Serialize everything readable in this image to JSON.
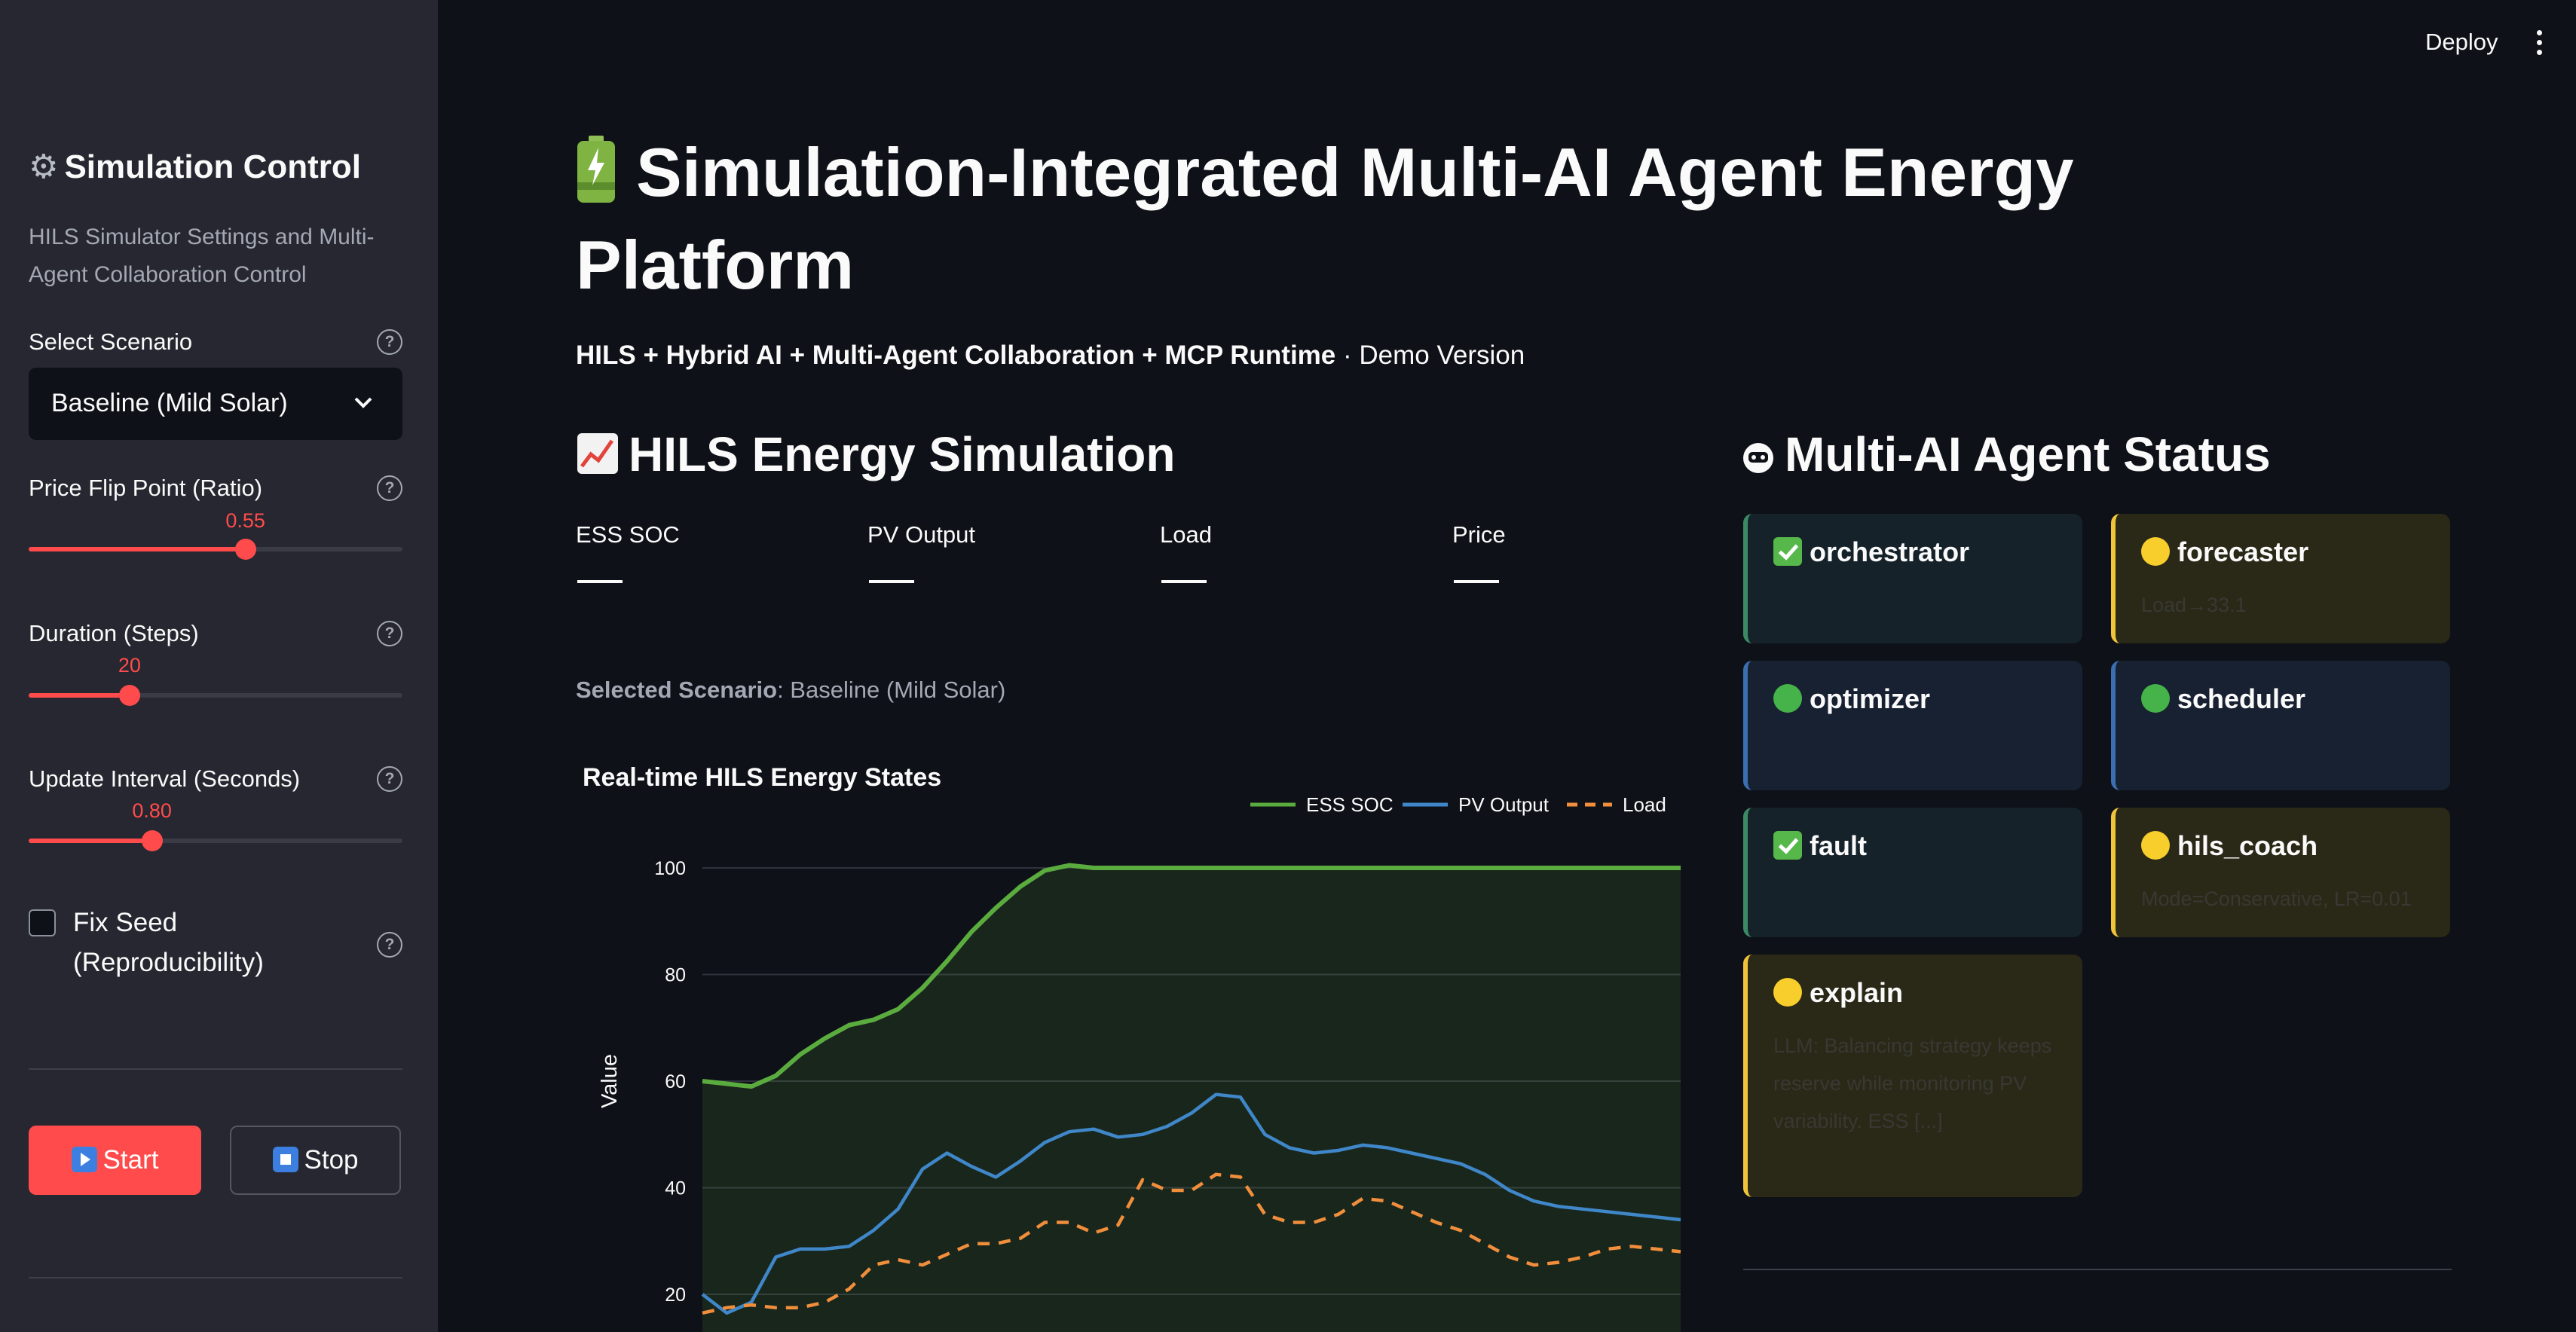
{
  "header": {
    "deploy_label": "Deploy"
  },
  "sidebar": {
    "title": "Simulation Control",
    "subtitle": "HILS Simulator Settings and Multi-Agent Collaboration Control",
    "scenario": {
      "label": "Select Scenario",
      "value": "Baseline (Mild Solar)"
    },
    "price_flip": {
      "label": "Price Flip Point (Ratio)",
      "value": "0.55",
      "fraction": 0.58
    },
    "duration": {
      "label": "Duration (Steps)",
      "value": "20",
      "fraction": 0.27
    },
    "interval": {
      "label": "Update Interval (Seconds)",
      "value": "0.80",
      "fraction": 0.33
    },
    "fix_seed": {
      "label": "Fix Seed (Reproducibility)",
      "checked": false
    },
    "start_label": "Start",
    "stop_label": "Stop"
  },
  "main": {
    "title": "Simulation-Integrated Multi-AI Agent Energy Platform",
    "subline_bold": "HILS + Hybrid AI + Multi-Agent Collaboration + MCP Runtime",
    "subline_rest": " · Demo Version",
    "sim_heading": "HILS Energy Simulation",
    "metrics": [
      {
        "label": "ESS SOC",
        "value": "—"
      },
      {
        "label": "PV Output",
        "value": "—"
      },
      {
        "label": "Load",
        "value": "—"
      },
      {
        "label": "Price",
        "value": "—"
      }
    ],
    "scenario_note_label": "Selected Scenario",
    "scenario_note_value": ": Baseline (Mild Solar)",
    "agents_heading": "Multi-AI Agent Status",
    "agents": [
      {
        "name": "orchestrator",
        "status": "ok",
        "detail": ""
      },
      {
        "name": "forecaster",
        "status": "warn",
        "detail": "Load→33.1"
      },
      {
        "name": "optimizer",
        "status": "info",
        "detail": ""
      },
      {
        "name": "scheduler",
        "status": "info",
        "detail": ""
      },
      {
        "name": "fault",
        "status": "ok",
        "detail": ""
      },
      {
        "name": "hils_coach",
        "status": "warn",
        "detail": "Mode=Conservative, LR=0.01"
      },
      {
        "name": "explain",
        "status": "warn",
        "detail": "LLM: Balancing strategy keeps reserve while monitoring PV variability. ESS [...]"
      }
    ]
  },
  "chart_data": {
    "type": "line",
    "title": "Real-time HILS Energy States",
    "ylabel": "Value",
    "xlabel": "",
    "ylim": [
      15,
      102
    ],
    "yticks": [
      20,
      40,
      60,
      80,
      100
    ],
    "legend_position": "top-right",
    "grid": true,
    "x": [
      0,
      1,
      2,
      3,
      4,
      5,
      6,
      7,
      8,
      9,
      10,
      11,
      12,
      13,
      14,
      15,
      16,
      17,
      18,
      19,
      20,
      21,
      22,
      23,
      24,
      25,
      26,
      27,
      28,
      29,
      30,
      31,
      32,
      33,
      34,
      35,
      36,
      37,
      38,
      39,
      40
    ],
    "series": [
      {
        "name": "ESS SOC",
        "color": "#5bac3f",
        "style": "solid",
        "fill": true,
        "values": [
          60,
          59.5,
          59,
          61,
          65,
          68,
          70.5,
          71.5,
          73.5,
          77.5,
          82.5,
          88,
          92.5,
          96.5,
          99.5,
          100.5,
          100,
          100,
          100,
          100,
          100,
          100,
          100,
          100,
          100,
          100,
          100,
          100,
          100,
          100,
          100,
          100,
          100,
          100,
          100,
          100,
          100,
          100,
          100,
          100,
          100
        ]
      },
      {
        "name": "PV Output",
        "color": "#3f87c8",
        "style": "solid",
        "fill": false,
        "values": [
          20,
          16.5,
          18.5,
          27,
          28.5,
          28.5,
          29,
          32,
          36,
          43.5,
          46.5,
          44,
          42,
          45,
          48.5,
          50.5,
          51,
          49.5,
          50,
          51.5,
          54,
          57.5,
          57,
          50,
          47.5,
          46.5,
          47,
          48,
          47.5,
          46.5,
          45.5,
          44.5,
          42.5,
          39.5,
          37.5,
          36.5,
          36,
          35.5,
          35,
          34.5,
          34
        ]
      },
      {
        "name": "Load",
        "color": "#f08e3c",
        "style": "dashed",
        "fill": false,
        "values": [
          16.5,
          17.5,
          18,
          17.5,
          17.5,
          18.5,
          21,
          25.5,
          26.5,
          25.5,
          27.5,
          29.5,
          29.5,
          30.5,
          33.5,
          33.5,
          31.5,
          33,
          41.5,
          39.5,
          39.5,
          42.5,
          42,
          35,
          33.5,
          33.5,
          35,
          38,
          37.5,
          35.5,
          33.5,
          32,
          29.5,
          27,
          25.5,
          26,
          27,
          28.5,
          29,
          28.5,
          28
        ]
      }
    ]
  }
}
